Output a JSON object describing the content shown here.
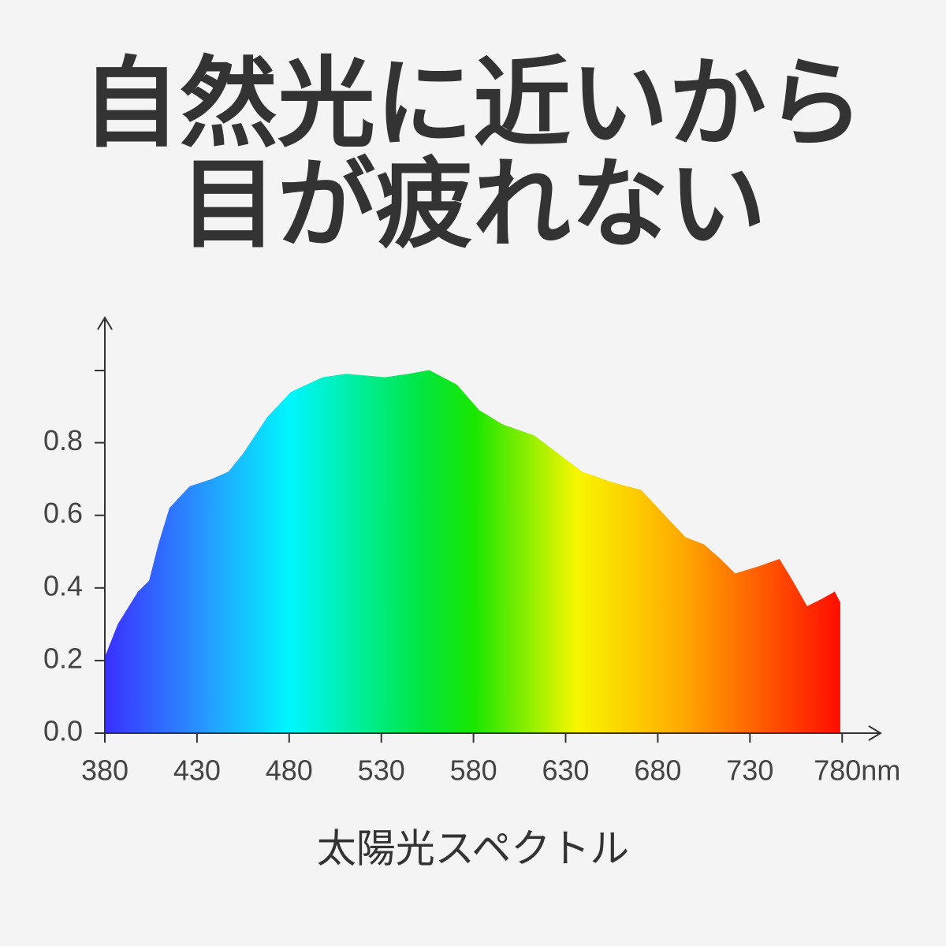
{
  "chart_data": {
    "type": "area",
    "title": [
      "自然光に近いから",
      "目が疲れない"
    ],
    "caption": "太陽光スペクトル",
    "x": [
      380,
      387,
      398,
      404,
      409,
      415,
      426,
      438,
      447,
      455,
      468,
      481,
      498,
      511,
      532,
      545,
      556,
      571,
      583,
      596,
      613,
      626,
      639,
      656,
      671,
      682,
      695,
      705,
      714,
      722,
      735,
      746,
      752,
      761,
      769,
      776,
      779
    ],
    "values": [
      0.21,
      0.3,
      0.39,
      0.42,
      0.52,
      0.62,
      0.68,
      0.7,
      0.72,
      0.77,
      0.87,
      0.94,
      0.98,
      0.99,
      0.98,
      0.99,
      1.0,
      0.96,
      0.89,
      0.85,
      0.82,
      0.77,
      0.72,
      0.69,
      0.67,
      0.61,
      0.54,
      0.52,
      0.48,
      0.44,
      0.46,
      0.48,
      0.43,
      0.35,
      0.37,
      0.39,
      0.36
    ],
    "xlim": [
      380,
      800
    ],
    "ylim": [
      0,
      1.14
    ],
    "xticks": [
      380,
      430,
      480,
      530,
      580,
      630,
      680,
      730,
      {
        "value": 780,
        "label": "780nm"
      }
    ],
    "yticks": [
      {
        "value": 0,
        "label": "0.0"
      },
      0.2,
      0.4,
      0.6,
      0.8
    ]
  }
}
